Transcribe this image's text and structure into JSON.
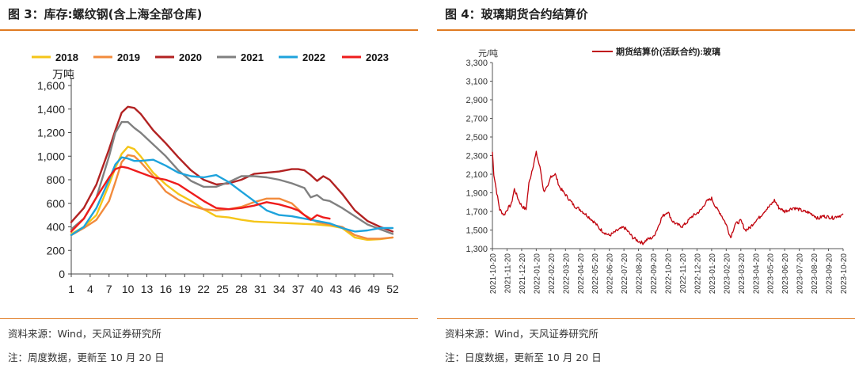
{
  "left": {
    "title": "图 3：库存:螺纹钢(含上海全部仓库)",
    "source": "资料来源：Wind，天风证券研究所",
    "note": "注：周度数据，更新至 10 月 20 日"
  },
  "right": {
    "title": "图 4：玻璃期货合约结算价",
    "source": "资料来源：Wind，天风证券研究所",
    "note": "注：日度数据，更新至 10 月 20 日"
  },
  "chart_data": [
    {
      "type": "line",
      "ylabel": "万吨",
      "ylim": [
        0,
        1600
      ],
      "yticks": [
        0,
        200,
        400,
        600,
        800,
        1000,
        1200,
        1400,
        1600
      ],
      "ytick_labels": [
        "0",
        "200",
        "400",
        "600",
        "800",
        "1,000",
        "1,200",
        "1,400",
        "1,600"
      ],
      "xlim": [
        1,
        52
      ],
      "xticks": [
        1,
        4,
        7,
        10,
        13,
        16,
        19,
        22,
        25,
        28,
        31,
        34,
        37,
        40,
        43,
        46,
        49,
        52
      ],
      "grid": false,
      "legend_position": "top",
      "series": [
        {
          "name": "2018",
          "color": "#f5c518",
          "x": [
            1,
            3,
            5,
            7,
            8,
            9,
            10,
            11,
            12,
            14,
            16,
            18,
            20,
            22,
            24,
            26,
            28,
            30,
            32,
            34,
            36,
            38,
            40,
            42,
            44,
            46,
            48,
            50,
            52
          ],
          "values": [
            340,
            400,
            500,
            760,
            900,
            1020,
            1080,
            1060,
            1000,
            860,
            760,
            680,
            620,
            550,
            490,
            480,
            460,
            445,
            440,
            435,
            430,
            425,
            420,
            410,
            390,
            310,
            290,
            295,
            310
          ]
        },
        {
          "name": "2019",
          "color": "#f28b3c",
          "x": [
            1,
            3,
            5,
            7,
            8,
            9,
            10,
            11,
            12,
            14,
            16,
            18,
            20,
            22,
            24,
            26,
            28,
            30,
            32,
            34,
            36,
            38,
            40,
            42,
            44,
            46,
            48,
            50,
            52
          ],
          "values": [
            330,
            390,
            460,
            620,
            780,
            950,
            1010,
            1000,
            950,
            830,
            700,
            630,
            580,
            550,
            540,
            550,
            570,
            610,
            640,
            640,
            600,
            500,
            440,
            420,
            400,
            330,
            300,
            300,
            310
          ]
        },
        {
          "name": "2020",
          "color": "#b22222",
          "x": [
            1,
            3,
            5,
            7,
            8,
            9,
            10,
            11,
            12,
            14,
            16,
            18,
            20,
            22,
            24,
            26,
            28,
            30,
            32,
            34,
            36,
            37,
            38,
            39,
            40,
            41,
            42,
            44,
            46,
            48,
            50,
            52
          ],
          "values": [
            440,
            560,
            760,
            1060,
            1220,
            1370,
            1420,
            1410,
            1360,
            1220,
            1110,
            990,
            880,
            800,
            760,
            770,
            800,
            850,
            860,
            870,
            890,
            890,
            880,
            840,
            790,
            830,
            800,
            680,
            540,
            450,
            400,
            360
          ]
        },
        {
          "name": "2021",
          "color": "#808080",
          "x": [
            1,
            3,
            5,
            7,
            8,
            9,
            10,
            11,
            12,
            14,
            16,
            18,
            20,
            22,
            24,
            26,
            28,
            30,
            32,
            34,
            36,
            38,
            39,
            40,
            41,
            42,
            44,
            46,
            48,
            50,
            52
          ],
          "values": [
            380,
            470,
            650,
            1000,
            1200,
            1290,
            1290,
            1240,
            1200,
            1100,
            1000,
            880,
            790,
            740,
            740,
            780,
            830,
            830,
            820,
            800,
            770,
            730,
            650,
            670,
            630,
            620,
            560,
            490,
            420,
            380,
            340
          ]
        },
        {
          "name": "2022",
          "color": "#1ea3dc",
          "x": [
            1,
            3,
            5,
            7,
            8,
            9,
            10,
            11,
            12,
            14,
            16,
            18,
            20,
            22,
            24,
            26,
            28,
            30,
            32,
            34,
            36,
            38,
            40,
            42,
            44,
            46,
            48,
            50,
            52
          ],
          "values": [
            330,
            400,
            560,
            800,
            930,
            990,
            980,
            960,
            960,
            970,
            920,
            860,
            830,
            820,
            840,
            780,
            700,
            620,
            540,
            500,
            490,
            470,
            450,
            430,
            390,
            360,
            370,
            390,
            390
          ]
        },
        {
          "name": "2023",
          "color": "#ee1c1c",
          "x": [
            1,
            3,
            5,
            7,
            8,
            9,
            10,
            11,
            12,
            14,
            16,
            18,
            20,
            22,
            24,
            26,
            28,
            30,
            32,
            34,
            36,
            37,
            38,
            39,
            40,
            41,
            42
          ],
          "values": [
            360,
            470,
            650,
            820,
            890,
            910,
            900,
            880,
            860,
            820,
            800,
            760,
            690,
            620,
            560,
            550,
            560,
            580,
            610,
            590,
            560,
            540,
            500,
            460,
            500,
            480,
            470
          ]
        }
      ]
    },
    {
      "type": "line",
      "ylabel": "元/吨",
      "ylim": [
        1300,
        3300
      ],
      "yticks": [
        1300,
        1500,
        1700,
        1900,
        2100,
        2300,
        2500,
        2700,
        2900,
        3100,
        3300
      ],
      "ytick_labels": [
        "1,300",
        "1,500",
        "1,700",
        "1,900",
        "2,100",
        "2,300",
        "2,500",
        "2,700",
        "2,900",
        "3,100",
        "3,300"
      ],
      "x_labels": [
        "2021-10-20",
        "2021-11-20",
        "2021-12-20",
        "2022-01-20",
        "2022-02-20",
        "2022-03-20",
        "2022-04-20",
        "2022-05-20",
        "2022-06-20",
        "2022-07-20",
        "2022-08-20",
        "2022-09-20",
        "2022-10-20",
        "2022-11-20",
        "2022-12-20",
        "2023-01-20",
        "2023-02-20",
        "2023-03-20",
        "2023-04-20",
        "2023-05-20",
        "2023-06-20",
        "2023-07-20",
        "2023-08-20",
        "2023-09-20",
        "2023-10-20"
      ],
      "grid": false,
      "legend_position": "top",
      "series": [
        {
          "name": "期货结算价(活跃合约):玻璃",
          "color": "#c0000b",
          "x": [
            0,
            0.1,
            0.3,
            0.5,
            0.8,
            1.0,
            1.3,
            1.5,
            1.8,
            2.0,
            2.3,
            2.5,
            2.8,
            3.0,
            3.3,
            3.5,
            3.8,
            4.0,
            4.3,
            4.6,
            5.0,
            5.3,
            5.6,
            6.0,
            6.3,
            6.6,
            7.0,
            7.3,
            7.6,
            8.0,
            8.3,
            8.6,
            9.0,
            9.3,
            9.6,
            10.0,
            10.3,
            10.6,
            11.0,
            11.3,
            11.6,
            12.0,
            12.3,
            12.6,
            13.0,
            13.3,
            13.6,
            14.0,
            14.3,
            14.6,
            15.0,
            15.3,
            15.6,
            16.0,
            16.3,
            16.6,
            17.0,
            17.3,
            17.6,
            18.0,
            18.3,
            18.6,
            19.0,
            19.3,
            19.6,
            20.0,
            20.3,
            20.6,
            21.0,
            21.3,
            21.6,
            22.0,
            22.3,
            22.6,
            23.0,
            23.3,
            23.6,
            24.0
          ],
          "values": [
            2340,
            2100,
            1900,
            1720,
            1660,
            1720,
            1780,
            1940,
            1820,
            1760,
            1720,
            2000,
            2200,
            2330,
            2140,
            1920,
            1960,
            2080,
            2100,
            1960,
            1880,
            1820,
            1760,
            1720,
            1680,
            1640,
            1580,
            1520,
            1480,
            1440,
            1470,
            1500,
            1530,
            1480,
            1420,
            1380,
            1360,
            1400,
            1420,
            1520,
            1640,
            1700,
            1600,
            1560,
            1540,
            1580,
            1640,
            1680,
            1720,
            1800,
            1840,
            1740,
            1680,
            1560,
            1420,
            1560,
            1600,
            1500,
            1520,
            1600,
            1640,
            1700,
            1760,
            1820,
            1740,
            1700,
            1720,
            1740,
            1720,
            1700,
            1690,
            1660,
            1620,
            1650,
            1640,
            1630,
            1650,
            1660
          ]
        }
      ]
    }
  ]
}
